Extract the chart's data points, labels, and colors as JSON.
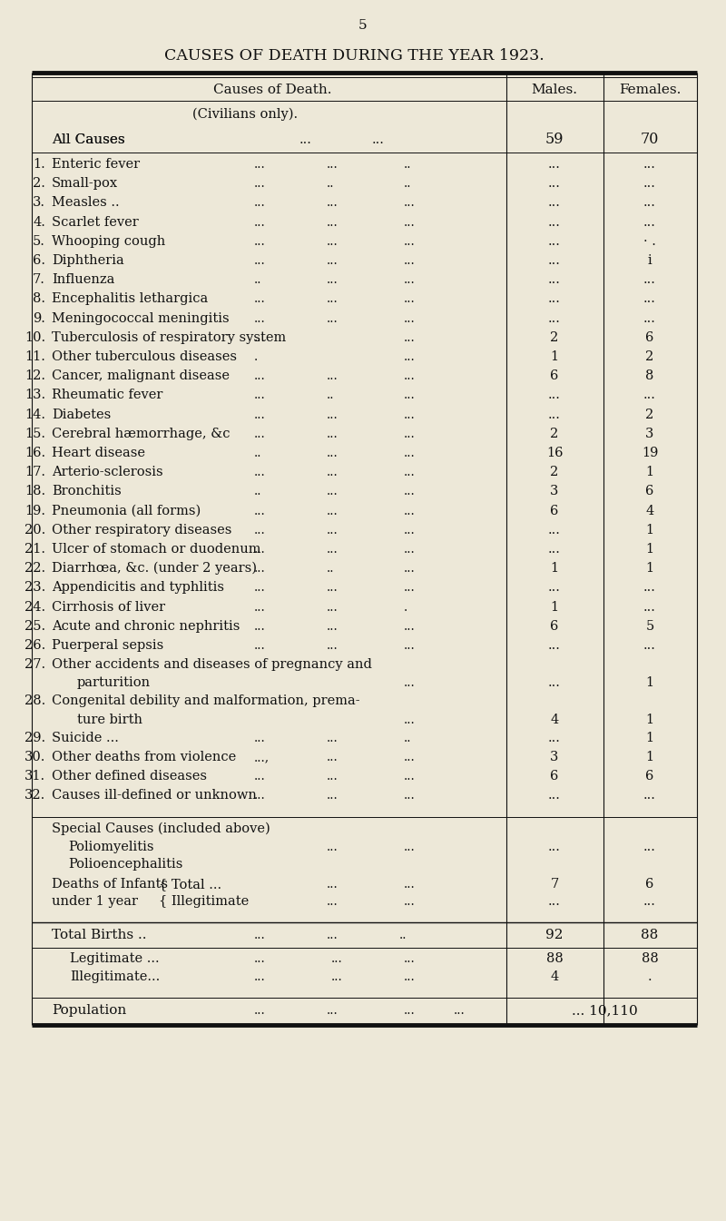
{
  "page_number": "5",
  "main_title": "CAUSES OF DEATH DURING THE YEAR 1923.",
  "col_header_cause": "Causes of Death.",
  "col_header_males": "Males.",
  "col_header_females": "Females.",
  "subheader": "(Civilians only).",
  "all_causes_label": "All Causes",
  "all_causes_males": "59",
  "all_causes_females": "70",
  "rows": [
    {
      "num": "1.",
      "cause": "Enteric fever",
      "dots1": "...",
      "dots2": "...",
      "dots3": "..",
      "males": "...",
      "females": "..."
    },
    {
      "num": "2.",
      "cause": "Small-pox",
      "dots1": "...",
      "dots2": "..",
      "dots3": "..",
      "males": "...",
      "females": "..."
    },
    {
      "num": "3.",
      "cause": "Measles ..",
      "dots1": "...",
      "dots2": "...",
      "dots3": "...",
      "males": "...",
      "females": "..."
    },
    {
      "num": "4.",
      "cause": "Scarlet fever",
      "dots1": "...",
      "dots2": "...",
      "dots3": "...",
      "males": "...",
      "females": "..."
    },
    {
      "num": "5.",
      "cause": "Whooping cough",
      "dots1": "...",
      "dots2": "...",
      "dots3": "...",
      "males": "...",
      "females": "· ."
    },
    {
      "num": "6.",
      "cause": "Diphtheria",
      "dots1": "...",
      "dots2": "...",
      "dots3": "...",
      "males": "...",
      "females": "i"
    },
    {
      "num": "7.",
      "cause": "Influenza",
      "dots1": "..",
      "dots2": "...",
      "dots3": "...",
      "males": "...",
      "females": "..."
    },
    {
      "num": "8.",
      "cause": "Encephalitis lethargica",
      "dots1": "...",
      "dots2": "...",
      "dots3": "...",
      "males": "...",
      "females": "..."
    },
    {
      "num": "9.",
      "cause": "Meningococcal meningitis",
      "dots1": "...",
      "dots2": "...",
      "dots3": "...",
      "males": "...",
      "females": "..."
    },
    {
      "num": "10.",
      "cause": "Tuberculosis of respiratory system",
      "dots1": "...",
      "dots2": "",
      "dots3": "...",
      "males": "2",
      "females": "6"
    },
    {
      "num": "11.",
      "cause": "Other tuberculous diseases",
      "dots1": ".",
      "dots2": "",
      "dots3": "...",
      "males": "1",
      "females": "2"
    },
    {
      "num": "12.",
      "cause": "Cancer, malignant disease",
      "dots1": "...",
      "dots2": "...",
      "dots3": "...",
      "males": "6",
      "females": "8"
    },
    {
      "num": "13.",
      "cause": "Rheumatic fever",
      "dots1": "...",
      "dots2": "..",
      "dots3": "...",
      "males": "...",
      "females": "..."
    },
    {
      "num": "14.",
      "cause": "Diabetes",
      "dots1": "...",
      "dots2": "...",
      "dots3": "...",
      "males": "...",
      "females": "2"
    },
    {
      "num": "15.",
      "cause": "Cerebral hæmorrhage, &c",
      "dots1": "...",
      "dots2": "...",
      "dots3": "...",
      "males": "2",
      "females": "3"
    },
    {
      "num": "16.",
      "cause": "Heart disease",
      "dots1": "..",
      "dots2": "...",
      "dots3": "...",
      "males": "16",
      "females": "19"
    },
    {
      "num": "17.",
      "cause": "Arterio-sclerosis",
      "dots1": "...",
      "dots2": "...",
      "dots3": "...",
      "males": "2",
      "females": "1"
    },
    {
      "num": "18.",
      "cause": "Bronchitis",
      "dots1": "..",
      "dots2": "...",
      "dots3": "...",
      "males": "3",
      "females": "6"
    },
    {
      "num": "19.",
      "cause": "Pneumonia (all forms)",
      "dots1": "...",
      "dots2": "...",
      "dots3": "...",
      "males": "6",
      "females": "4"
    },
    {
      "num": "20.",
      "cause": "Other respiratory diseases",
      "dots1": "...",
      "dots2": "...",
      "dots3": "...",
      "males": "...",
      "females": "1"
    },
    {
      "num": "21.",
      "cause": "Ulcer of stomach or duodenum",
      "dots1": "...",
      "dots2": "...",
      "dots3": "...",
      "males": "...",
      "females": "1"
    },
    {
      "num": "22.",
      "cause": "Diarrhœa, &c. (under 2 years)",
      "dots1": "...",
      "dots2": "..",
      "dots3": "...",
      "males": "1",
      "females": "1"
    },
    {
      "num": "23.",
      "cause": "Appendicitis and typhlitis",
      "dots1": "...",
      "dots2": "...",
      "dots3": "...",
      "males": "...",
      "females": "..."
    },
    {
      "num": "24.",
      "cause": "Cirrhosis of liver",
      "dots1": "...",
      "dots2": "...",
      "dots3": ".",
      "males": "1",
      "females": "..."
    },
    {
      "num": "25.",
      "cause": "Acute and chronic nephritis",
      "dots1": "...",
      "dots2": "...",
      "dots3": "...",
      "males": "6",
      "females": "5"
    },
    {
      "num": "26.",
      "cause": "Puerperal sepsis",
      "dots1": "...",
      "dots2": "...",
      "dots3": "...",
      "males": "...",
      "females": "..."
    },
    {
      "num": "27.",
      "cause": "Other accidents and diseases of pregnancy and",
      "cause2": "parturition",
      "dots1": "...",
      "dots2": "...",
      "dots3": "...",
      "males": "...",
      "females": "1"
    },
    {
      "num": "28.",
      "cause": "Congenital debility and malformation, prema-",
      "cause2": "ture birth",
      "dots1": "...",
      "dots2": "...",
      "dots3": "...",
      "males": "4",
      "females": "1"
    },
    {
      "num": "29.",
      "cause": "Suicide ...",
      "dots1": "...",
      "dots2": "...",
      "dots3": "..",
      "males": "...",
      "females": "1"
    },
    {
      "num": "30.",
      "cause": "Other deaths from violence",
      "dots1": "...,",
      "dots2": "...",
      "dots3": "...",
      "males": "3",
      "females": "1"
    },
    {
      "num": "31.",
      "cause": "Other defined diseases",
      "dots1": "...",
      "dots2": "...",
      "dots3": "...",
      "males": "6",
      "females": "6"
    },
    {
      "num": "32.",
      "cause": "Causes ill-defined or unknown",
      "dots1": "...",
      "dots2": "...",
      "dots3": "...",
      "males": "...",
      "females": "..."
    }
  ],
  "bg_color": "#ede8d8",
  "text_color": "#111111",
  "line_color": "#111111"
}
